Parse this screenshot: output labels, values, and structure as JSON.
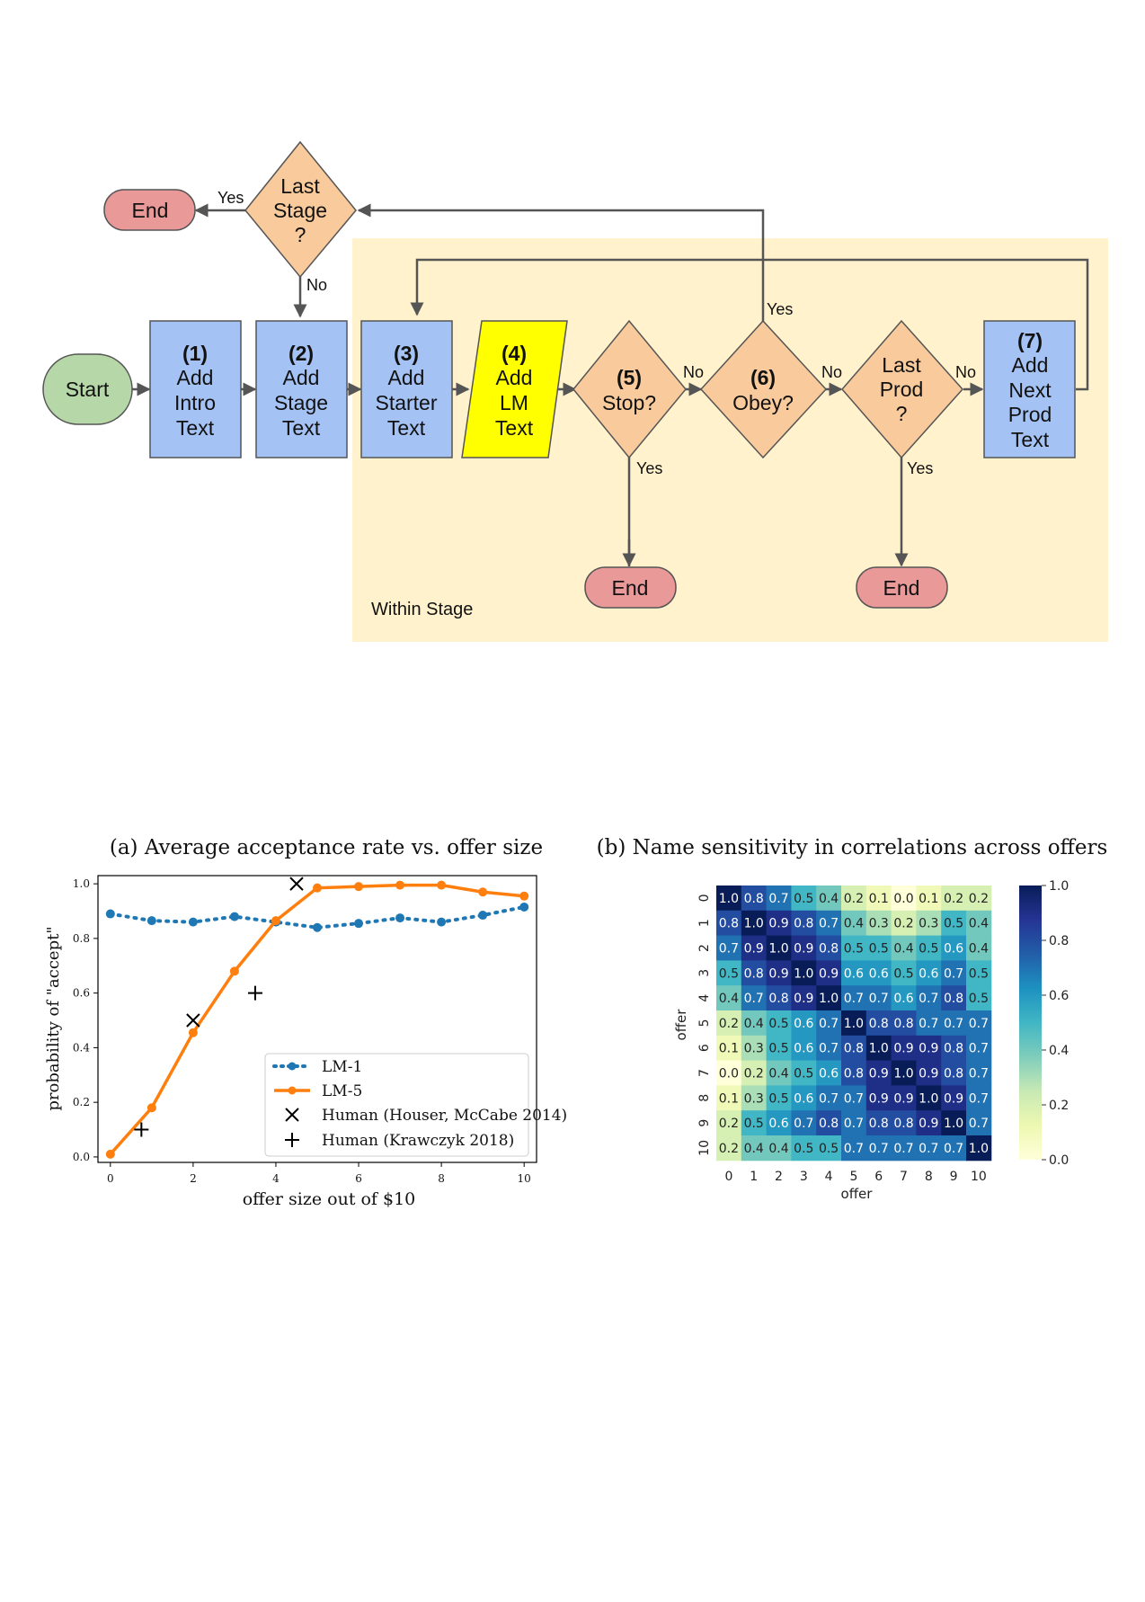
{
  "flowchart": {
    "region_label": "Within Stage",
    "start": "Start",
    "end_label": "End",
    "yes": "Yes",
    "no": "No",
    "steps": {
      "s1": [
        "(1)",
        "Add",
        "Intro",
        "Text"
      ],
      "s2": [
        "(2)",
        "Add",
        "Stage",
        "Text"
      ],
      "s3": [
        "(3)",
        "Add",
        "Starter",
        "Text"
      ],
      "s4": [
        "(4)",
        "Add",
        "LM",
        "Text"
      ],
      "s5": [
        "(5)",
        "Stop?"
      ],
      "s6": [
        "(6)",
        "Obey?"
      ],
      "s7": [
        "(7)",
        "Add",
        "Next",
        "Prod",
        "Text"
      ],
      "last_prod": [
        "Last",
        "Prod",
        "?"
      ],
      "last_stage": [
        "Last",
        "Stage",
        "?"
      ]
    },
    "colors": {
      "process": "#a4c2f4",
      "decision": "#f9cb9c",
      "lm_step": "#ffff00",
      "start": "#b6d7a8",
      "end": "#ea9999",
      "region": "#fff2cc"
    }
  },
  "chart_data": [
    {
      "type": "line",
      "title": "(a) Average acceptance rate vs. offer size",
      "xlabel": "offer size out of $10",
      "ylabel": "probability of \"accept\"",
      "xlim": [
        -0.3,
        10.3
      ],
      "ylim": [
        -0.02,
        1.03
      ],
      "xticks": [
        0,
        2,
        4,
        6,
        8,
        10
      ],
      "yticks": [
        0.0,
        0.2,
        0.4,
        0.6,
        0.8,
        1.0
      ],
      "legend_position": "lower-right",
      "series": [
        {
          "name": "LM-1",
          "style": "dotted",
          "color": "#1f77b4",
          "x": [
            0,
            1,
            2,
            3,
            4,
            5,
            6,
            7,
            8,
            9,
            10
          ],
          "y": [
            0.89,
            0.865,
            0.86,
            0.88,
            0.86,
            0.84,
            0.855,
            0.875,
            0.86,
            0.885,
            0.915
          ]
        },
        {
          "name": "LM-5",
          "style": "solid",
          "color": "#ff7f0e",
          "x": [
            0,
            1,
            2,
            3,
            4,
            5,
            6,
            7,
            8,
            9,
            10
          ],
          "y": [
            0.01,
            0.18,
            0.455,
            0.68,
            0.865,
            0.985,
            0.99,
            0.995,
            0.995,
            0.97,
            0.955
          ]
        },
        {
          "name": "Human (Houser, McCabe 2014)",
          "marker": "x",
          "x": [
            2,
            4.5
          ],
          "y": [
            0.5,
            1.0
          ]
        },
        {
          "name": "Human (Krawczyk 2018)",
          "marker": "+",
          "x": [
            0.75,
            3.5
          ],
          "y": [
            0.1,
            0.6
          ]
        }
      ]
    },
    {
      "type": "heatmap",
      "title": "(b) Name sensitivity in correlations across offers",
      "xlabel": "offer",
      "ylabel": "offer",
      "labels": [
        "0",
        "1",
        "2",
        "3",
        "4",
        "5",
        "6",
        "7",
        "8",
        "9",
        "10"
      ],
      "colorbar_ticks": [
        "0.0",
        "0.2",
        "0.4",
        "0.6",
        "0.8",
        "1.0"
      ],
      "colormap": "YlGnBu",
      "values": [
        [
          1.0,
          0.8,
          0.7,
          0.5,
          0.4,
          0.2,
          0.1,
          0.0,
          0.1,
          0.2,
          0.2
        ],
        [
          0.8,
          1.0,
          0.9,
          0.8,
          0.7,
          0.4,
          0.3,
          0.2,
          0.3,
          0.5,
          0.4
        ],
        [
          0.7,
          0.9,
          1.0,
          0.9,
          0.8,
          0.5,
          0.5,
          0.4,
          0.5,
          0.6,
          0.4
        ],
        [
          0.5,
          0.8,
          0.9,
          1.0,
          0.9,
          0.6,
          0.6,
          0.5,
          0.6,
          0.7,
          0.5
        ],
        [
          0.4,
          0.7,
          0.8,
          0.9,
          1.0,
          0.7,
          0.7,
          0.6,
          0.7,
          0.8,
          0.5
        ],
        [
          0.2,
          0.4,
          0.5,
          0.6,
          0.7,
          1.0,
          0.8,
          0.8,
          0.7,
          0.7,
          0.7
        ],
        [
          0.1,
          0.3,
          0.5,
          0.6,
          0.7,
          0.8,
          1.0,
          0.9,
          0.9,
          0.8,
          0.7
        ],
        [
          0.0,
          0.2,
          0.4,
          0.5,
          0.6,
          0.8,
          0.9,
          1.0,
          0.9,
          0.8,
          0.7
        ],
        [
          0.1,
          0.3,
          0.5,
          0.6,
          0.7,
          0.7,
          0.9,
          0.9,
          1.0,
          0.9,
          0.7
        ],
        [
          0.2,
          0.5,
          0.6,
          0.7,
          0.8,
          0.7,
          0.8,
          0.8,
          0.9,
          1.0,
          0.7
        ],
        [
          0.2,
          0.4,
          0.4,
          0.5,
          0.5,
          0.7,
          0.7,
          0.7,
          0.7,
          0.7,
          1.0
        ]
      ]
    }
  ]
}
